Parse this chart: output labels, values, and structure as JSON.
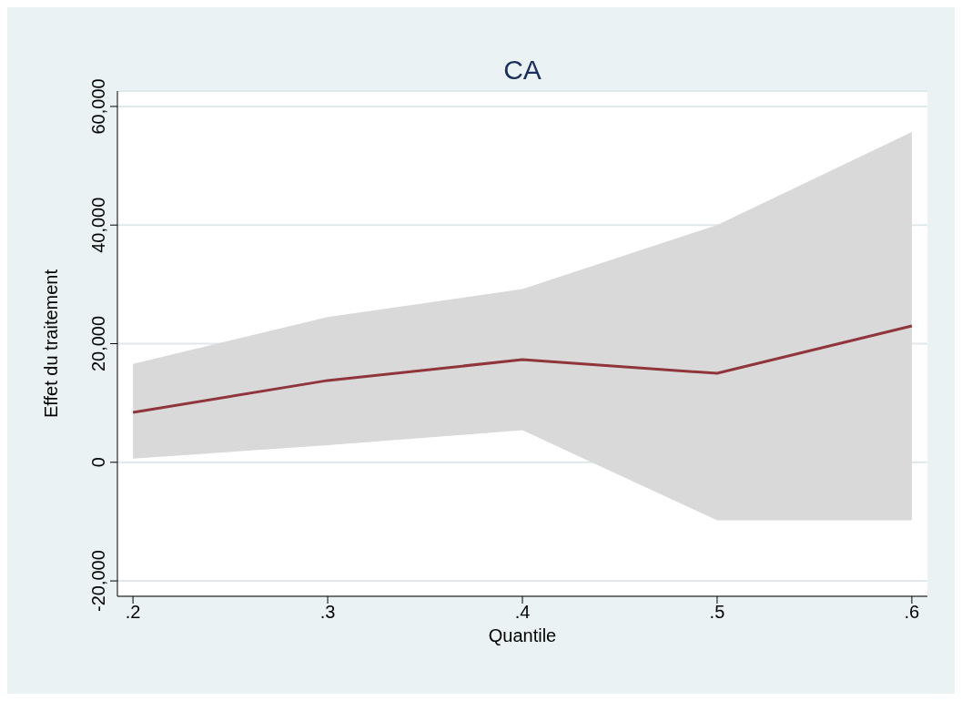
{
  "chart_data": {
    "type": "line",
    "title": "CA",
    "xlabel": "Quantile",
    "ylabel": "Effet du traitement",
    "x": [
      0.2,
      0.3,
      0.4,
      0.5,
      0.6
    ],
    "series": [
      {
        "color": "#90353b",
        "values": [
          8400,
          13800,
          17300,
          15000,
          23000
        ],
        "lower": [
          600,
          2900,
          5400,
          -9800,
          -9800
        ],
        "upper": [
          16600,
          24500,
          29200,
          40000,
          55700
        ]
      }
    ],
    "xlim": [
      0.192,
      0.608
    ],
    "xticks": [
      {
        "value": 0.2,
        "label": ".2"
      },
      {
        "value": 0.3,
        "label": ".3"
      },
      {
        "value": 0.4,
        "label": ".4"
      },
      {
        "value": 0.5,
        "label": ".5"
      },
      {
        "value": 0.6,
        "label": ".6"
      }
    ],
    "ylim": [
      -22600,
      62600
    ],
    "yticks": [
      {
        "value": -20000,
        "label": "-20,000"
      },
      {
        "value": 0,
        "label": "0"
      },
      {
        "value": 20000,
        "label": "20,000"
      },
      {
        "value": 40000,
        "label": "40,000"
      },
      {
        "value": 60000,
        "label": "60,000"
      }
    ],
    "grid": "y",
    "marker": "none",
    "line_style": "solid"
  }
}
